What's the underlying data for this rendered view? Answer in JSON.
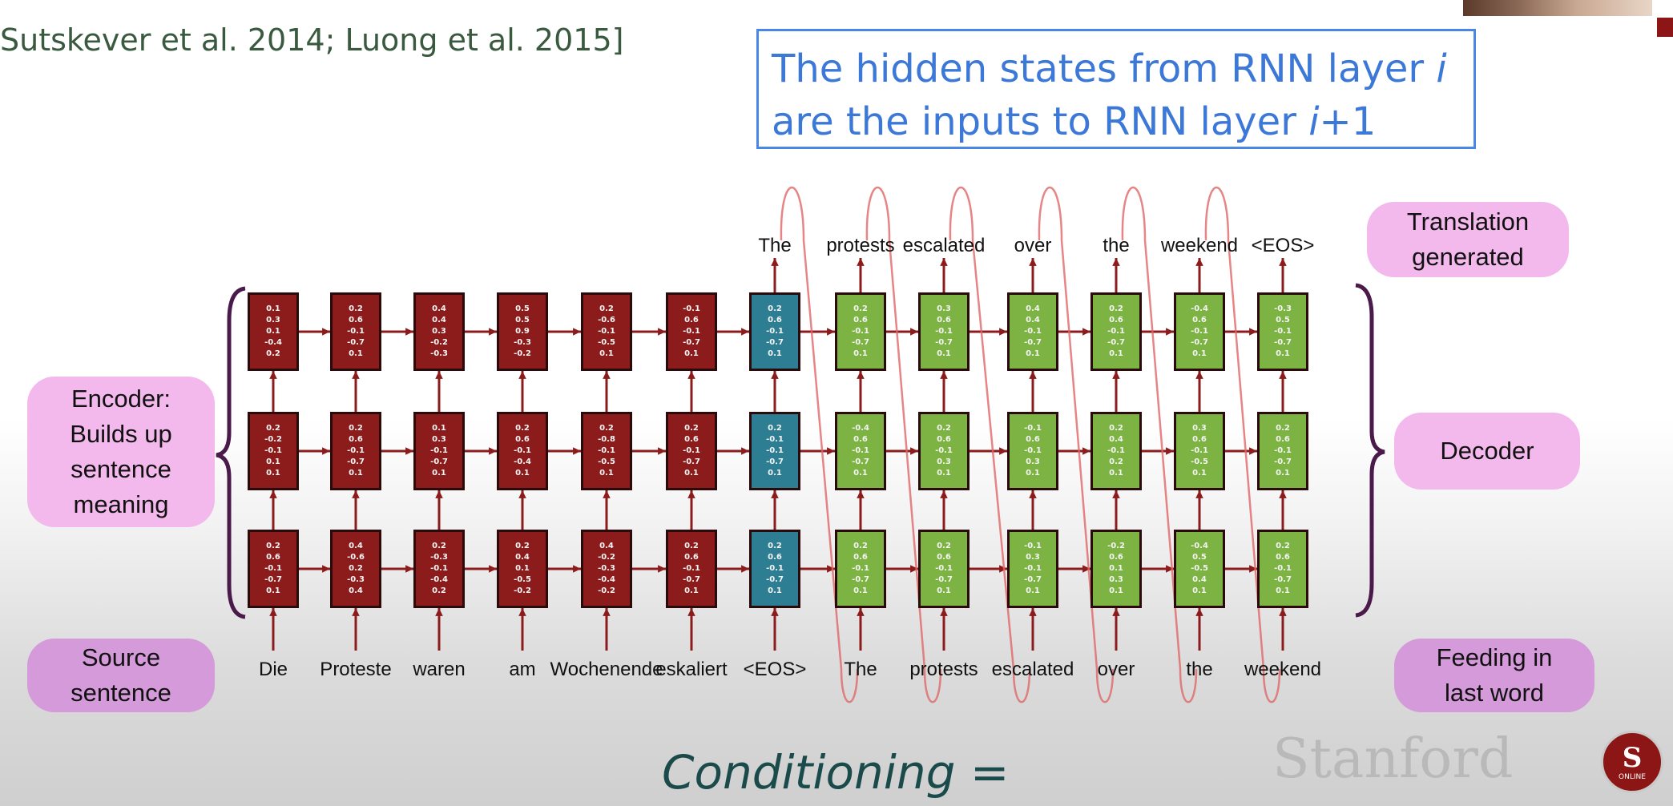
{
  "citation": "Sutskever et al. 2014; Luong et al. 2015]",
  "callout": {
    "line1_a": "The hidden states from RNN layer ",
    "line1_i": "i",
    "line2_a": "are the inputs to RNN layer ",
    "line2_i": "i",
    "line2_b": "+1"
  },
  "labels": {
    "encoder": [
      "Encoder:",
      "Builds up",
      "sentence",
      "meaning"
    ],
    "source": [
      "Source",
      "sentence"
    ],
    "translation": [
      "Translation",
      "generated"
    ],
    "decoder": "Decoder",
    "feeding": [
      "Feeding in",
      "last word"
    ]
  },
  "source_words": [
    "Die",
    "Proteste",
    "waren",
    "am",
    "Wochenende",
    "eskaliert",
    "<EOS>",
    "The",
    "protests",
    "escalated",
    "over",
    "the",
    "weekend"
  ],
  "output_words": [
    "The",
    "protests",
    "escalated",
    "over",
    "the",
    "weekend",
    "<EOS>"
  ],
  "columns": [
    {
      "kind": "enc",
      "top": [
        "0.1",
        "0.3",
        "0.1",
        "-0.4",
        "0.2"
      ],
      "mid": [
        "0.2",
        "-0.2",
        "-0.1",
        "0.1",
        "0.1"
      ],
      "bot": [
        "0.2",
        "0.6",
        "-0.1",
        "-0.7",
        "0.1"
      ]
    },
    {
      "kind": "enc",
      "top": [
        "0.2",
        "0.6",
        "-0.1",
        "-0.7",
        "0.1"
      ],
      "mid": [
        "0.2",
        "0.6",
        "-0.1",
        "-0.7",
        "0.1"
      ],
      "bot": [
        "0.4",
        "-0.6",
        "0.2",
        "-0.3",
        "0.4"
      ]
    },
    {
      "kind": "enc",
      "top": [
        "0.4",
        "0.4",
        "0.3",
        "-0.2",
        "-0.3"
      ],
      "mid": [
        "0.1",
        "0.3",
        "-0.1",
        "-0.7",
        "0.1"
      ],
      "bot": [
        "0.2",
        "-0.3",
        "-0.1",
        "-0.4",
        "0.2"
      ]
    },
    {
      "kind": "enc",
      "top": [
        "0.5",
        "0.5",
        "0.9",
        "-0.3",
        "-0.2"
      ],
      "mid": [
        "0.2",
        "0.6",
        "-0.1",
        "-0.4",
        "0.1"
      ],
      "bot": [
        "0.2",
        "0.4",
        "0.1",
        "-0.5",
        "-0.2"
      ]
    },
    {
      "kind": "enc",
      "top": [
        "0.2",
        "-0.6",
        "-0.1",
        "-0.5",
        "0.1"
      ],
      "mid": [
        "0.2",
        "-0.8",
        "-0.1",
        "-0.5",
        "0.1"
      ],
      "bot": [
        "0.4",
        "-0.2",
        "-0.3",
        "-0.4",
        "-0.2"
      ]
    },
    {
      "kind": "enc",
      "top": [
        "-0.1",
        "0.6",
        "-0.1",
        "-0.7",
        "0.1"
      ],
      "mid": [
        "0.2",
        "0.6",
        "-0.1",
        "-0.7",
        "0.1"
      ],
      "bot": [
        "0.2",
        "0.6",
        "-0.1",
        "-0.7",
        "0.1"
      ]
    },
    {
      "kind": "eos",
      "top": [
        "0.2",
        "0.6",
        "-0.1",
        "-0.7",
        "0.1"
      ],
      "mid": [
        "0.2",
        "-0.1",
        "-0.1",
        "-0.7",
        "0.1"
      ],
      "bot": [
        "0.2",
        "0.6",
        "-0.1",
        "-0.7",
        "0.1"
      ]
    },
    {
      "kind": "dec",
      "top": [
        "0.2",
        "0.6",
        "-0.1",
        "-0.7",
        "0.1"
      ],
      "mid": [
        "-0.4",
        "0.6",
        "-0.1",
        "-0.7",
        "0.1"
      ],
      "bot": [
        "0.2",
        "0.6",
        "-0.1",
        "-0.7",
        "0.1"
      ]
    },
    {
      "kind": "dec",
      "top": [
        "0.3",
        "0.6",
        "-0.1",
        "-0.7",
        "0.1"
      ],
      "mid": [
        "0.2",
        "0.6",
        "-0.1",
        "0.3",
        "0.1"
      ],
      "bot": [
        "0.2",
        "0.6",
        "-0.1",
        "-0.7",
        "0.1"
      ]
    },
    {
      "kind": "dec",
      "top": [
        "0.4",
        "0.4",
        "-0.1",
        "-0.7",
        "0.1"
      ],
      "mid": [
        "-0.1",
        "0.6",
        "-0.1",
        "0.3",
        "0.1"
      ],
      "bot": [
        "-0.1",
        "0.3",
        "-0.1",
        "-0.7",
        "0.1"
      ]
    },
    {
      "kind": "dec",
      "top": [
        "0.2",
        "0.6",
        "-0.1",
        "-0.7",
        "0.1"
      ],
      "mid": [
        "0.2",
        "0.4",
        "-0.1",
        "0.2",
        "0.1"
      ],
      "bot": [
        "-0.2",
        "0.6",
        "0.1",
        "0.3",
        "0.1"
      ]
    },
    {
      "kind": "dec",
      "top": [
        "-0.4",
        "0.6",
        "-0.1",
        "-0.7",
        "0.1"
      ],
      "mid": [
        "0.3",
        "0.6",
        "-0.1",
        "-0.5",
        "0.1"
      ],
      "bot": [
        "-0.4",
        "0.5",
        "-0.5",
        "0.4",
        "0.1"
      ]
    },
    {
      "kind": "dec",
      "top": [
        "-0.3",
        "0.5",
        "-0.1",
        "-0.7",
        "0.1"
      ],
      "mid": [
        "0.2",
        "0.6",
        "-0.1",
        "-0.7",
        "0.1"
      ],
      "bot": [
        "0.2",
        "0.6",
        "-0.1",
        "-0.7",
        "0.1"
      ]
    }
  ],
  "conditioning": "Conditioning =",
  "brand": "Stanford",
  "logo": {
    "letter": "S",
    "caption": "ONLINE"
  },
  "colors": {
    "encoder": "#8c1c1c",
    "eos": "#2e7e93",
    "decoder": "#7cb342",
    "arrow": "#8c1c1c",
    "feedback": "#e06666",
    "brace": "#4a1a4a"
  }
}
